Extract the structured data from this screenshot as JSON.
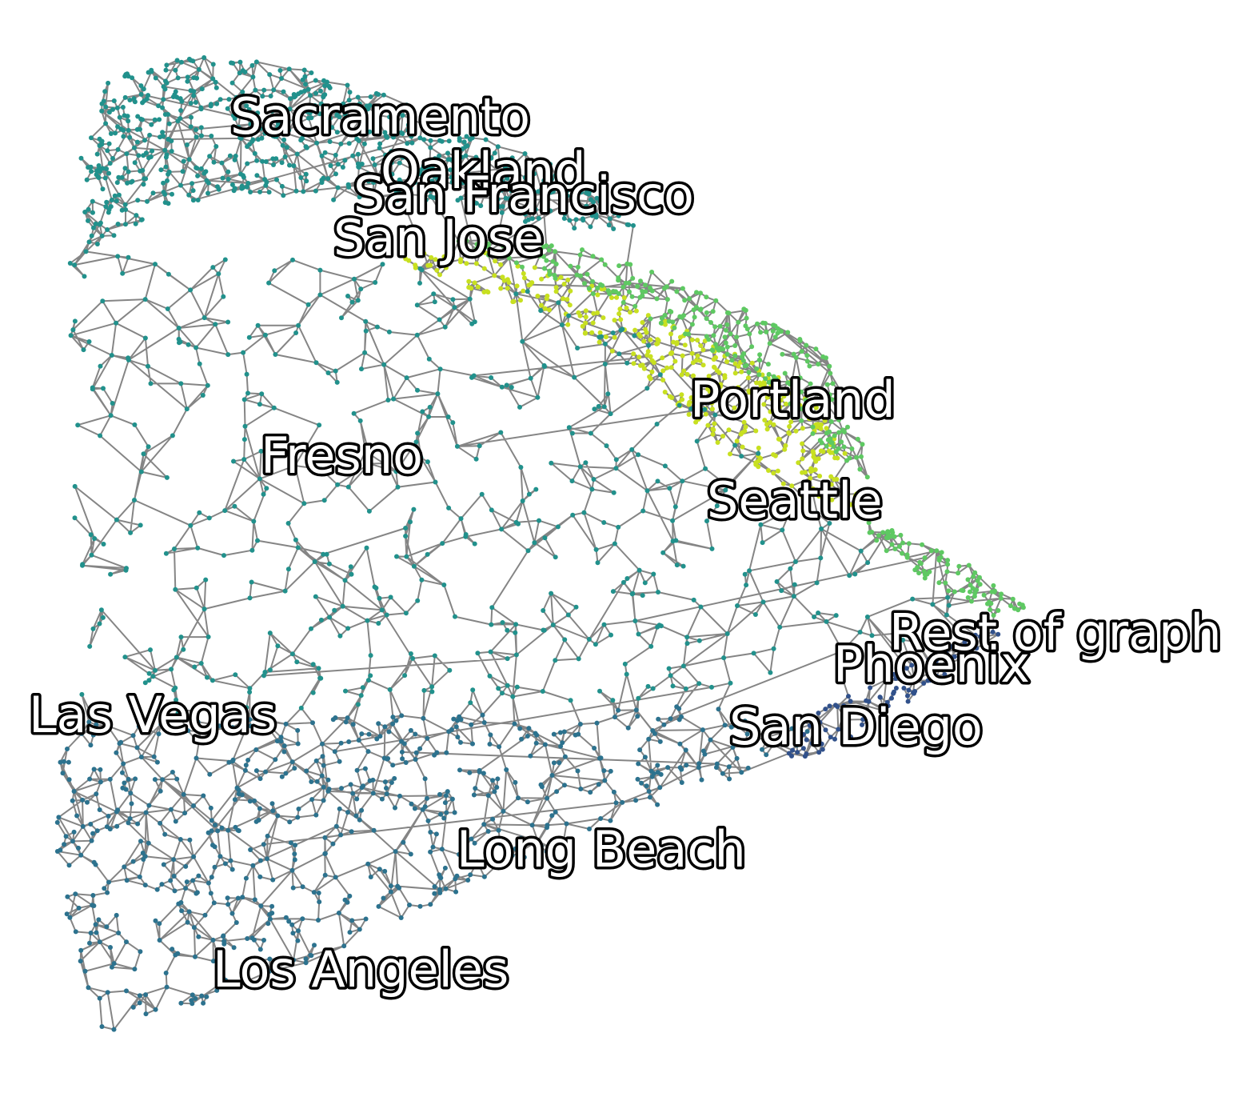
{
  "graph": {
    "labels": [
      {
        "id": "sacramento",
        "text": "Sacramento"
      },
      {
        "id": "oakland",
        "text": "Oakland"
      },
      {
        "id": "san-francisco",
        "text": "San Francisco"
      },
      {
        "id": "san-jose",
        "text": "San Jose"
      },
      {
        "id": "portland",
        "text": "Portland"
      },
      {
        "id": "fresno",
        "text": "Fresno"
      },
      {
        "id": "seattle",
        "text": "Seattle"
      },
      {
        "id": "rest-of-graph",
        "text": "Rest of graph"
      },
      {
        "id": "phoenix",
        "text": "Phoenix"
      },
      {
        "id": "las-vegas",
        "text": "Las Vegas"
      },
      {
        "id": "san-diego",
        "text": "San Diego"
      },
      {
        "id": "long-beach",
        "text": "Long Beach"
      },
      {
        "id": "los-angeles",
        "text": "Los Angeles"
      }
    ],
    "colors": {
      "edge": "#333333",
      "teal": "#21918c",
      "green": "#5ec962",
      "yellow": "#c8e020",
      "blue": "#2c728e",
      "darkblue": "#31518b",
      "label_fill": "#ffffff",
      "label_outline": "#000000"
    }
  }
}
